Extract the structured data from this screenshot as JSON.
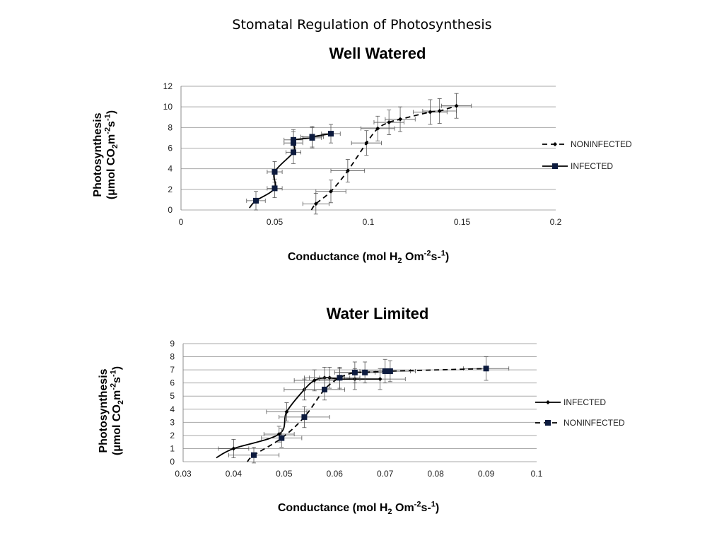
{
  "slide_title": "Stomatal Regulation of Photosynthesis",
  "charts": [
    {
      "title": "Well Watered",
      "ylabel": {
        "line1": "Photosynthesis",
        "open": "(μmol CO",
        "sub": "2",
        "m": "m",
        "sup1": "-2",
        "s": "s",
        "sup2": "-1",
        "close": ")"
      },
      "xlabel": {
        "text": "Conductance (mol H",
        "sub": "2",
        "o": " Om",
        "sup1": "-2",
        "s": "s-",
        "sup2": "1",
        "close": ")"
      }
    },
    {
      "title": "Water Limited",
      "ylabel": {
        "line1": "Photosynthesis",
        "open": "(μmol CO",
        "sub": "2",
        "m": "m",
        "sup1": "-2",
        "s": "s",
        "sup2": "-1",
        "close": ")"
      },
      "xlabel": {
        "text": "Conductance (mol H",
        "sub": "2",
        "o": " Om",
        "sup1": "-2",
        "s": "s-",
        "sup2": "1",
        "close": ")"
      }
    }
  ],
  "chart_data": [
    {
      "type": "scatter",
      "title": "Well Watered",
      "xlabel": "Conductance (mol H2 Om-2s-1)",
      "ylabel": "Photosynthesis (μmol CO2m-2s-1)",
      "xlim": [
        0,
        0.2
      ],
      "ylim": [
        0,
        12
      ],
      "xticks": [
        "0",
        "0.05",
        "0.1",
        "0.15",
        "0.2"
      ],
      "yticks": [
        "0",
        "2",
        "4",
        "6",
        "8",
        "10",
        "12"
      ],
      "grid": "horizontal",
      "legend_position": "right",
      "series": [
        {
          "name": "NONINFECTED",
          "marker": "diamond",
          "line": "dashed",
          "color": "#000000",
          "points": [
            {
              "x": 0.072,
              "y": 0.6,
              "xerr": 0.007,
              "yerr": 1.0
            },
            {
              "x": 0.08,
              "y": 1.8,
              "xerr": 0.008,
              "yerr": 1.1
            },
            {
              "x": 0.089,
              "y": 3.8,
              "xerr": 0.009,
              "yerr": 1.1
            },
            {
              "x": 0.099,
              "y": 6.5,
              "xerr": 0.008,
              "yerr": 1.2
            },
            {
              "x": 0.105,
              "y": 7.9,
              "xerr": 0.009,
              "yerr": 1.2
            },
            {
              "x": 0.111,
              "y": 8.5,
              "xerr": 0.008,
              "yerr": 1.2
            },
            {
              "x": 0.117,
              "y": 8.8,
              "xerr": 0.008,
              "yerr": 1.2
            },
            {
              "x": 0.133,
              "y": 9.5,
              "xerr": 0.009,
              "yerr": 1.2
            },
            {
              "x": 0.138,
              "y": 9.6,
              "xerr": 0.009,
              "yerr": 1.2
            },
            {
              "x": 0.147,
              "y": 10.1,
              "xerr": 0.008,
              "yerr": 1.2
            }
          ]
        },
        {
          "name": "INFECTED",
          "marker": "square",
          "line": "solid",
          "color": "#0d1b3e",
          "points": [
            {
              "x": 0.04,
              "y": 0.9,
              "xerr": 0.005,
              "yerr": 0.9
            },
            {
              "x": 0.05,
              "y": 2.1,
              "xerr": 0.004,
              "yerr": 0.9
            },
            {
              "x": 0.05,
              "y": 3.7,
              "xerr": 0.004,
              "yerr": 1.0
            },
            {
              "x": 0.06,
              "y": 5.6,
              "xerr": 0.004,
              "yerr": 1.1
            },
            {
              "x": 0.06,
              "y": 6.5,
              "xerr": 0.005,
              "yerr": 1.1
            },
            {
              "x": 0.06,
              "y": 6.8,
              "xerr": 0.005,
              "yerr": 1.0
            },
            {
              "x": 0.07,
              "y": 7.0,
              "xerr": 0.005,
              "yerr": 1.0
            },
            {
              "x": 0.07,
              "y": 7.1,
              "xerr": 0.006,
              "yerr": 1.0
            },
            {
              "x": 0.08,
              "y": 7.4,
              "xerr": 0.005,
              "yerr": 0.9
            }
          ]
        }
      ]
    },
    {
      "type": "scatter",
      "title": "Water Limited",
      "xlabel": "Conductance (mol H2 Om-2s-1)",
      "ylabel": "Photosynthesis (μmol CO2m-2s-1)",
      "xlim": [
        0.03,
        0.1
      ],
      "ylim": [
        0,
        9
      ],
      "xticks": [
        "0.03",
        "0.04",
        "0.05",
        "0.06",
        "0.07",
        "0.08",
        "0.09",
        "0.1"
      ],
      "yticks": [
        "0",
        "1",
        "2",
        "3",
        "4",
        "5",
        "6",
        "7",
        "8",
        "9"
      ],
      "grid": "horizontal",
      "legend_position": "right",
      "series": [
        {
          "name": "INFECTED",
          "marker": "diamond",
          "line": "solid",
          "color": "#000000",
          "points": [
            {
              "x": 0.04,
              "y": 1.0,
              "xerr": 0.003,
              "yerr": 0.7
            },
            {
              "x": 0.049,
              "y": 2.1,
              "xerr": 0.003,
              "yerr": 0.6
            },
            {
              "x": 0.0505,
              "y": 3.8,
              "xerr": 0.004,
              "yerr": 0.7
            },
            {
              "x": 0.054,
              "y": 5.5,
              "xerr": 0.004,
              "yerr": 0.8
            },
            {
              "x": 0.056,
              "y": 6.2,
              "xerr": 0.004,
              "yerr": 0.8
            },
            {
              "x": 0.058,
              "y": 6.4,
              "xerr": 0.004,
              "yerr": 0.8
            },
            {
              "x": 0.059,
              "y": 6.4,
              "xerr": 0.004,
              "yerr": 0.8
            },
            {
              "x": 0.061,
              "y": 6.3,
              "xerr": 0.004,
              "yerr": 0.8
            },
            {
              "x": 0.064,
              "y": 6.3,
              "xerr": 0.005,
              "yerr": 0.8
            },
            {
              "x": 0.069,
              "y": 6.3,
              "xerr": 0.005,
              "yerr": 0.8
            }
          ]
        },
        {
          "name": "NONINFECTED",
          "marker": "square",
          "line": "dashed",
          "color": "#0d1b3e",
          "points": [
            {
              "x": 0.044,
              "y": 0.5,
              "xerr": 0.005,
              "yerr": 0.6
            },
            {
              "x": 0.0495,
              "y": 1.8,
              "xerr": 0.004,
              "yerr": 0.7
            },
            {
              "x": 0.054,
              "y": 3.4,
              "xerr": 0.005,
              "yerr": 0.8
            },
            {
              "x": 0.058,
              "y": 5.5,
              "xerr": 0.004,
              "yerr": 0.8
            },
            {
              "x": 0.061,
              "y": 6.4,
              "xerr": 0.004,
              "yerr": 0.8
            },
            {
              "x": 0.064,
              "y": 6.8,
              "xerr": 0.004,
              "yerr": 0.8
            },
            {
              "x": 0.066,
              "y": 6.8,
              "xerr": 0.005,
              "yerr": 0.8
            },
            {
              "x": 0.07,
              "y": 6.9,
              "xerr": 0.005,
              "yerr": 0.9
            },
            {
              "x": 0.071,
              "y": 6.9,
              "xerr": 0.005,
              "yerr": 0.8
            },
            {
              "x": 0.09,
              "y": 7.1,
              "xerr": 0.0045,
              "yerr": 0.9
            }
          ]
        }
      ]
    }
  ]
}
